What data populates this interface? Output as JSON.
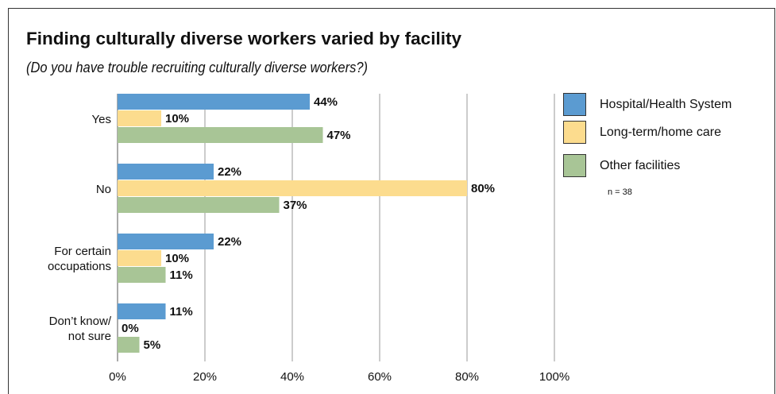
{
  "chart_data": {
    "type": "hbar",
    "title": "Finding culturally diverse workers varied by facility",
    "subtitle": "(Do you have trouble recruiting culturally diverse workers?)",
    "categories": [
      "Yes",
      "No",
      "For certain\noccupations",
      "Don’t know/\nnot sure"
    ],
    "series": [
      {
        "name": "Hospital/Health System",
        "color": "#5b9bd1",
        "values": [
          44,
          22,
          22,
          11
        ],
        "value_labels": [
          "44%",
          "22%",
          "22%",
          "11%"
        ]
      },
      {
        "name": "Long-term/home care",
        "color": "#fcdc8e",
        "values": [
          10,
          80,
          10,
          0
        ],
        "value_labels": [
          "10%",
          "80%",
          "10%",
          "0%"
        ]
      },
      {
        "name": "Other facilities",
        "color": "#a8c596",
        "values": [
          47,
          37,
          11,
          5
        ],
        "value_labels": [
          "47%",
          "37%",
          "11%",
          "5%"
        ]
      }
    ],
    "xlim": [
      0,
      100
    ],
    "xticks": [
      {
        "value": 0,
        "label": "0%"
      },
      {
        "value": 20,
        "label": "20%"
      },
      {
        "value": 40,
        "label": "40%"
      },
      {
        "value": 60,
        "label": "60%"
      },
      {
        "value": 80,
        "label": "80%"
      },
      {
        "value": 100,
        "label": "100%"
      }
    ],
    "grid": true,
    "note": "n = 38"
  }
}
